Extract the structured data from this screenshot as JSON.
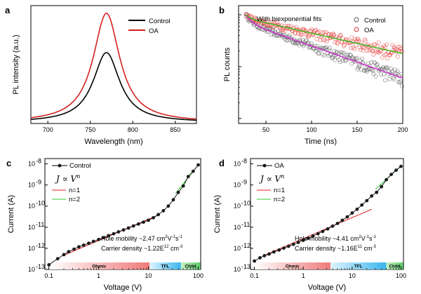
{
  "chart_data": [
    {
      "id": "a",
      "panel_label": "a",
      "type": "line",
      "xlabel": "Wavelength (nm)",
      "ylabel": "PL intensity (a.u.)",
      "xlim": [
        680,
        875
      ],
      "ylim": [
        0,
        1.08
      ],
      "xticks": [
        700,
        750,
        800,
        850
      ],
      "series": [
        {
          "name": "Control",
          "color": "#000000",
          "peak_nm": 769,
          "fwhm_nm": 38,
          "peak": 0.64
        },
        {
          "name": "OA",
          "color": "#d42020",
          "peak_nm": 769,
          "fwhm_nm": 38,
          "peak": 1.0
        }
      ]
    },
    {
      "id": "b",
      "panel_label": "b",
      "type": "scatter",
      "title": "With biexponential fits",
      "xlabel": "Time (ns)",
      "ylabel": "PL counts",
      "xlim": [
        20,
        200
      ],
      "xticks": [
        50,
        100,
        150,
        200
      ],
      "series": [
        {
          "name": "Control",
          "color": "#555555",
          "fit_color": "#cc33cc",
          "start": 1.0,
          "a1": 0.3,
          "tau1": 6,
          "a2": 0.7,
          "tau2": 70
        },
        {
          "name": "OA",
          "color": "#e53030",
          "fit_color": "#44bb22",
          "start": 1.0,
          "a1": 0.15,
          "tau1": 6,
          "a2": 0.85,
          "tau2": 110
        }
      ]
    },
    {
      "id": "c",
      "panel_label": "c",
      "type": "scatter",
      "xlabel": "Voltage (V)",
      "ylabel": "Current (A)",
      "xlim_log": [
        -1.08,
        2.05
      ],
      "ylim_log": [
        -13,
        -7.75
      ],
      "xticks": [
        {
          "v": 0.1,
          "label": "0.1"
        },
        {
          "v": 1,
          "label": "1"
        },
        {
          "v": 10,
          "label": "10"
        },
        {
          "v": 100,
          "label": "100"
        }
      ],
      "yticks": [
        {
          "exp": -13,
          "label": "10",
          "sup": "-13"
        },
        {
          "exp": -12,
          "label": "10",
          "sup": "-12"
        },
        {
          "exp": -11,
          "label": "10",
          "sup": "-11"
        },
        {
          "exp": -10,
          "label": "10",
          "sup": "-10"
        },
        {
          "exp": -9,
          "label": "10",
          "sup": "-9"
        },
        {
          "exp": -8,
          "label": "10",
          "sup": "-8"
        }
      ],
      "data_legend": "Control",
      "relation": "J ∝ V",
      "relation_exp": "n",
      "fit_legend": [
        {
          "label": "n=1",
          "color": "#e02020"
        },
        {
          "label": "n=2",
          "color": "#33cc33"
        }
      ],
      "annotation": {
        "mobility_prefix": "Hole mobility ~2.47 cm",
        "mobility_sup1": "2",
        "mobility_mid": "V",
        "mobility_sup2": "-1",
        "mobility_suffix": "s",
        "mobility_sup3": "-1",
        "density_prefix": "Carrier density ~1.22E",
        "density_sup1": "12",
        "density_suffix": " cm",
        "density_sup2": "-3"
      },
      "regions": [
        {
          "label": "Ohmic",
          "from": 0.1,
          "to": 10.5
        },
        {
          "label": "TFL",
          "from": 10.5,
          "to": 45
        },
        {
          "label": "Child",
          "from": 45,
          "to": 110
        }
      ],
      "points": [
        [
          0.1,
          -12.78
        ],
        [
          0.15,
          -12.49
        ],
        [
          0.2,
          -12.3
        ],
        [
          0.25,
          -12.16
        ],
        [
          0.32,
          -12.04
        ],
        [
          0.4,
          -11.93
        ],
        [
          0.5,
          -11.85
        ],
        [
          0.63,
          -11.76
        ],
        [
          0.79,
          -11.67
        ],
        [
          1.0,
          -11.58
        ],
        [
          1.26,
          -11.49
        ],
        [
          1.58,
          -11.4
        ],
        [
          2.0,
          -11.31
        ],
        [
          2.5,
          -11.22
        ],
        [
          3.16,
          -11.13
        ],
        [
          3.98,
          -11.04
        ],
        [
          5.01,
          -10.94
        ],
        [
          6.31,
          -10.85
        ],
        [
          7.94,
          -10.76
        ],
        [
          10.0,
          -10.67
        ],
        [
          12.6,
          -10.55
        ],
        [
          15.8,
          -10.4
        ],
        [
          20.0,
          -10.22
        ],
        [
          25.1,
          -10.0
        ],
        [
          31.6,
          -9.7
        ],
        [
          39.8,
          -9.35
        ],
        [
          50.1,
          -9.05
        ],
        [
          63.1,
          -8.6
        ],
        [
          79.4,
          -8.35
        ],
        [
          100.0,
          -8.05
        ]
      ],
      "fit_n1": [
        [
          0.2,
          -12.33
        ],
        [
          15,
          -10.45
        ]
      ],
      "fit_n2": [
        [
          35,
          -9.4
        ],
        [
          100,
          -8.05
        ]
      ]
    },
    {
      "id": "d",
      "panel_label": "d",
      "type": "scatter",
      "xlabel": "Voltage (V)",
      "ylabel": "Current (A)",
      "xlim_log": [
        -1.08,
        2.05
      ],
      "ylim_log": [
        -13,
        -7.75
      ],
      "xticks": [
        {
          "v": 0.1,
          "label": "0.1"
        },
        {
          "v": 1,
          "label": "1"
        },
        {
          "v": 10,
          "label": "10"
        },
        {
          "v": 100,
          "label": "100"
        }
      ],
      "yticks": [
        {
          "exp": -13,
          "label": "10",
          "sup": "-13"
        },
        {
          "exp": -12,
          "label": "10",
          "sup": "-12"
        },
        {
          "exp": -11,
          "label": "10",
          "sup": "-11"
        },
        {
          "exp": -10,
          "label": "10",
          "sup": "-10"
        },
        {
          "exp": -9,
          "label": "10",
          "sup": "-9"
        },
        {
          "exp": -8,
          "label": "10",
          "sup": "-8"
        }
      ],
      "data_legend": "OA",
      "relation": "J ∝ V",
      "relation_exp": "n",
      "fit_legend": [
        {
          "label": "n=1",
          "color": "#e02020"
        },
        {
          "label": "n=2",
          "color": "#33cc33"
        }
      ],
      "annotation": {
        "mobility_prefix": "Hole mobility ~4.41 cm",
        "mobility_sup1": "2",
        "mobility_mid": "V",
        "mobility_sup2": "-1",
        "mobility_suffix": "s",
        "mobility_sup3": "-1",
        "density_prefix": "Carrier density ~1.16E",
        "density_sup1": "11",
        "density_suffix": " cm",
        "density_sup2": "-3"
      },
      "regions": [
        {
          "label": "Ohmic",
          "from": 0.1,
          "to": 3.6
        },
        {
          "label": "TFL",
          "from": 3.6,
          "to": 50
        },
        {
          "label": "Child",
          "from": 50,
          "to": 110
        }
      ],
      "points": [
        [
          0.1,
          -12.6
        ],
        [
          0.13,
          -12.45
        ],
        [
          0.16,
          -12.35
        ],
        [
          0.2,
          -12.27
        ],
        [
          0.25,
          -12.17
        ],
        [
          0.32,
          -12.08
        ],
        [
          0.4,
          -11.99
        ],
        [
          0.5,
          -11.9
        ],
        [
          0.63,
          -11.81
        ],
        [
          0.79,
          -11.72
        ],
        [
          1.0,
          -11.62
        ],
        [
          1.26,
          -11.52
        ],
        [
          1.58,
          -11.42
        ],
        [
          2.0,
          -11.31
        ],
        [
          2.5,
          -11.2
        ],
        [
          3.16,
          -11.08
        ],
        [
          3.98,
          -10.95
        ],
        [
          5.01,
          -10.82
        ],
        [
          6.31,
          -10.67
        ],
        [
          7.94,
          -10.51
        ],
        [
          10.0,
          -10.33
        ],
        [
          12.6,
          -10.15
        ],
        [
          15.8,
          -9.95
        ],
        [
          20.0,
          -9.74
        ],
        [
          25.1,
          -9.52
        ],
        [
          31.6,
          -9.35
        ],
        [
          39.8,
          -9.08
        ],
        [
          50.1,
          -8.75
        ],
        [
          63.1,
          -8.5
        ],
        [
          79.4,
          -8.3
        ],
        [
          100.0,
          -8.12
        ]
      ],
      "fit_n1": [
        [
          0.15,
          -12.36
        ],
        [
          25,
          -10.15
        ]
      ],
      "fit_n2": [
        [
          30,
          -9.2
        ],
        [
          100,
          -8.1
        ]
      ]
    }
  ]
}
